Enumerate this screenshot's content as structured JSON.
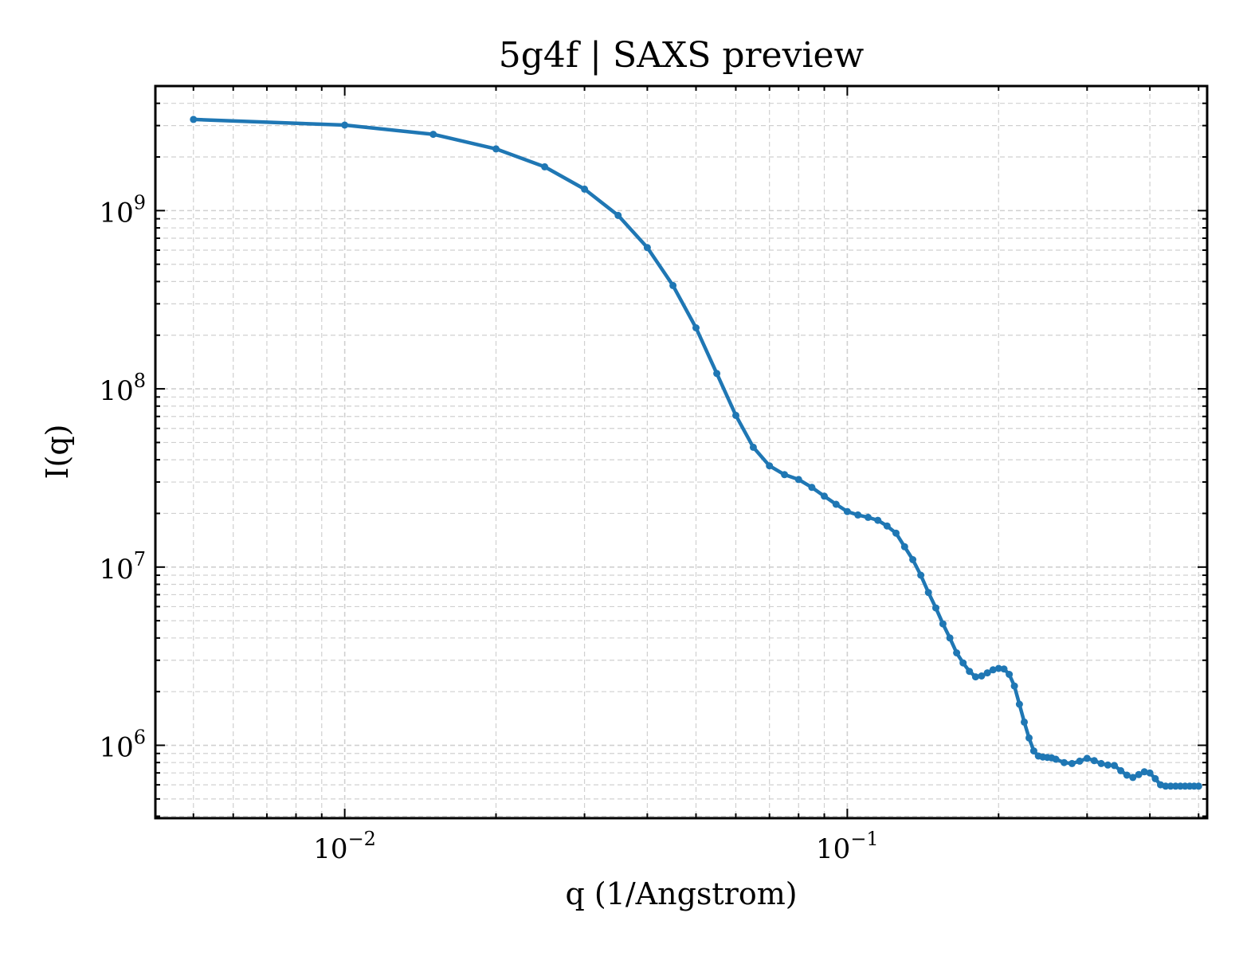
{
  "chart_data": {
    "type": "line",
    "title": "5g4f | SAXS preview",
    "xlabel": "q (1/Angstrom)",
    "ylabel": "I(q)",
    "xscale": "log",
    "yscale": "log",
    "xlim": [
      0.0042,
      0.52
    ],
    "ylim": [
      390000,
      5000000000
    ],
    "grid": true,
    "legend": "none",
    "x_major_ticks": [
      {
        "value": 0.01,
        "base": "10",
        "exp": "−2"
      },
      {
        "value": 0.1,
        "base": "10",
        "exp": "−1"
      }
    ],
    "y_major_ticks": [
      {
        "value": 1000000,
        "base": "10",
        "exp": "6"
      },
      {
        "value": 10000000,
        "base": "10",
        "exp": "7"
      },
      {
        "value": 100000000,
        "base": "10",
        "exp": "8"
      },
      {
        "value": 1000000000,
        "base": "10",
        "exp": "9"
      }
    ],
    "colors": {
      "line": "#1f77b4",
      "grid": "#d0d0d0",
      "axis": "#000000"
    },
    "series": [
      {
        "x": [
          0.005,
          0.01,
          0.015,
          0.02,
          0.025,
          0.03,
          0.035,
          0.04,
          0.045,
          0.05,
          0.055,
          0.06,
          0.065,
          0.07,
          0.075,
          0.08,
          0.085,
          0.09,
          0.095,
          0.1,
          0.105,
          0.11,
          0.115,
          0.12,
          0.125,
          0.13,
          0.135,
          0.14,
          0.145,
          0.15,
          0.155,
          0.16,
          0.165,
          0.17,
          0.175,
          0.18,
          0.185,
          0.19,
          0.195,
          0.2,
          0.205,
          0.21,
          0.215,
          0.22,
          0.225,
          0.23,
          0.235,
          0.24,
          0.245,
          0.25,
          0.255,
          0.26,
          0.27,
          0.28,
          0.29,
          0.3,
          0.31,
          0.32,
          0.33,
          0.34,
          0.35,
          0.36,
          0.37,
          0.38,
          0.39,
          0.4,
          0.41,
          0.42,
          0.43,
          0.44,
          0.45,
          0.46,
          0.47,
          0.48,
          0.49,
          0.5
        ],
        "y": [
          3250000000,
          3020000000,
          2680000000,
          2220000000,
          1760000000,
          1320000000,
          940000000,
          620000000,
          380000000,
          220000000,
          122000000,
          71000000,
          47000000,
          37000000,
          33000000,
          31000000,
          28000000,
          25000000,
          22500000,
          20500000,
          19600000,
          19000000,
          18300000,
          17000000,
          15500000,
          13000000,
          11000000,
          9000000,
          7200000,
          5900000,
          4800000,
          4000000,
          3300000,
          2900000,
          2600000,
          2420000,
          2450000,
          2550000,
          2650000,
          2700000,
          2680000,
          2500000,
          2150000,
          1700000,
          1350000,
          1100000,
          930000,
          870000,
          860000,
          855000,
          850000,
          835000,
          800000,
          790000,
          815000,
          845000,
          820000,
          790000,
          775000,
          770000,
          720000,
          680000,
          660000,
          685000,
          710000,
          700000,
          650000,
          600000,
          590000,
          590000,
          590000,
          590000,
          590000,
          590000,
          590000,
          590000
        ]
      }
    ]
  }
}
